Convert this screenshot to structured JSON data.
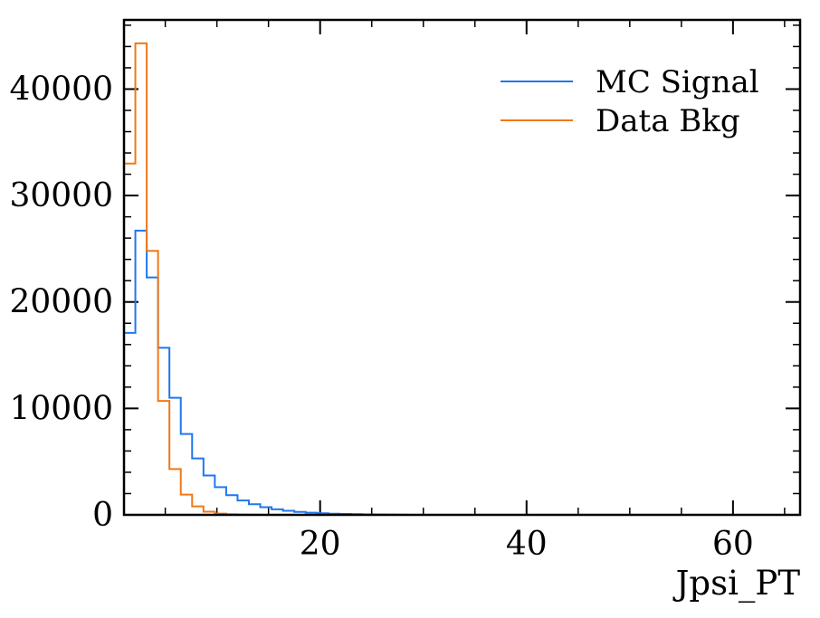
{
  "chart_data": {
    "type": "histogram",
    "title": "",
    "xlabel": "Jpsi_PT",
    "ylabel": "",
    "xlim": [
      1.0,
      66.5
    ],
    "ylim": [
      0,
      46500
    ],
    "grid": false,
    "legend_position": "top-right",
    "bin_edges": [
      1.0,
      2.1,
      3.2,
      4.3,
      5.4,
      6.5,
      7.6,
      8.7,
      9.8,
      10.9,
      12.0,
      13.1,
      14.2,
      15.3,
      16.4,
      17.5,
      18.6,
      19.7,
      20.8,
      21.9,
      23.0,
      24.1,
      25.2,
      26.3,
      27.4,
      28.5
    ],
    "x_ticks": [
      20,
      40,
      60
    ],
    "y_ticks": [
      0,
      10000,
      20000,
      30000,
      40000
    ],
    "series": [
      {
        "name": "MC Signal",
        "color": "#1f77f0",
        "counts": [
          17100,
          26700,
          22300,
          15700,
          11000,
          7600,
          5300,
          3700,
          2600,
          1850,
          1350,
          1000,
          720,
          520,
          380,
          280,
          200,
          150,
          110,
          80,
          60,
          45,
          30,
          20,
          10
        ]
      },
      {
        "name": "Data Bkg",
        "color": "#f07818",
        "counts": [
          33000,
          44300,
          24800,
          10700,
          4300,
          1900,
          800,
          300,
          120,
          50,
          20,
          10,
          0,
          0,
          0,
          0,
          0,
          0,
          0,
          0,
          0,
          0,
          0,
          0,
          0
        ]
      }
    ]
  }
}
